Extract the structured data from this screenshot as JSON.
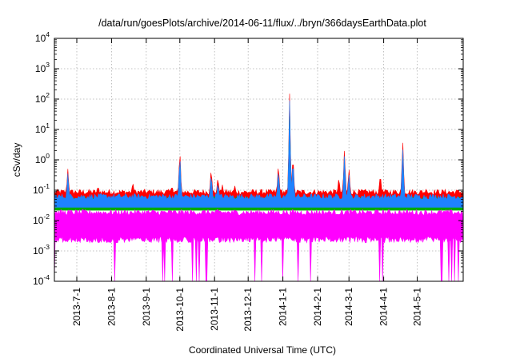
{
  "chart_data": {
    "type": "line",
    "title": "/data/run/goesPlots/archive/2014-06-11/flux/../bryn/366daysEarthData.plot",
    "xlabel": "Coordinated Universal Time (UTC)",
    "ylabel": "cSv/day",
    "yscale": "log",
    "ylim": [
      0.0001,
      10000
    ],
    "xlim": [
      "2013-06-11",
      "2014-06-11"
    ],
    "grid": true,
    "y_ticks": [
      {
        "base": "10",
        "exp": "-4",
        "value": 0.0001
      },
      {
        "base": "10",
        "exp": "-3",
        "value": 0.001
      },
      {
        "base": "10",
        "exp": "-2",
        "value": 0.01
      },
      {
        "base": "10",
        "exp": "-1",
        "value": 0.1
      },
      {
        "base": "10",
        "exp": "0",
        "value": 1
      },
      {
        "base": "10",
        "exp": "1",
        "value": 10
      },
      {
        "base": "10",
        "exp": "2",
        "value": 100
      },
      {
        "base": "10",
        "exp": "3",
        "value": 1000
      },
      {
        "base": "10",
        "exp": "4",
        "value": 10000
      }
    ],
    "x_ticks": [
      {
        "label": "2013-7-1",
        "date": "2013-07-01"
      },
      {
        "label": "2013-8-1",
        "date": "2013-08-01"
      },
      {
        "label": "2013-9-1",
        "date": "2013-09-01"
      },
      {
        "label": "2013-10-1",
        "date": "2013-10-01"
      },
      {
        "label": "2013-11-1",
        "date": "2013-11-01"
      },
      {
        "label": "2013-12-1",
        "date": "2013-12-01"
      },
      {
        "label": "2014-1-1",
        "date": "2014-01-01"
      },
      {
        "label": "2014-2-1",
        "date": "2014-02-01"
      },
      {
        "label": "2014-3-1",
        "date": "2014-03-01"
      },
      {
        "label": "2014-4-1",
        "date": "2014-04-01"
      },
      {
        "label": "2014-5-1",
        "date": "2014-05-01"
      }
    ],
    "series": [
      {
        "color": "#ff0000",
        "baseline": 0.07,
        "events": [
          {
            "date": "2013-06-23",
            "value": 0.5
          },
          {
            "date": "2013-07-20",
            "value": 0.15
          },
          {
            "date": "2013-08-20",
            "value": 0.2
          },
          {
            "date": "2013-09-24",
            "value": 0.15
          },
          {
            "date": "2013-10-01",
            "value": 3
          },
          {
            "date": "2013-10-29",
            "value": 0.6
          },
          {
            "date": "2013-11-04",
            "value": 0.3
          },
          {
            "date": "2013-11-08",
            "value": 0.15
          },
          {
            "date": "2013-11-19",
            "value": 0.15
          },
          {
            "date": "2013-12-28",
            "value": 0.9
          },
          {
            "date": "2014-01-07",
            "value": 150
          },
          {
            "date": "2014-01-10",
            "value": 2
          },
          {
            "date": "2014-02-20",
            "value": 0.3
          },
          {
            "date": "2014-02-25",
            "value": 3
          },
          {
            "date": "2014-03-01",
            "value": 0.6
          },
          {
            "date": "2014-03-29",
            "value": 0.4
          },
          {
            "date": "2014-04-18",
            "value": 6
          },
          {
            "date": "2014-05-09",
            "value": 0.12
          }
        ]
      },
      {
        "color": "#00aa00",
        "baseline": 0.04,
        "events": [
          {
            "date": "2013-06-23",
            "value": 0.25
          },
          {
            "date": "2013-10-01",
            "value": 1.5
          },
          {
            "date": "2013-10-29",
            "value": 0.3
          },
          {
            "date": "2013-11-04",
            "value": 0.15
          },
          {
            "date": "2013-12-28",
            "value": 0.5
          },
          {
            "date": "2014-01-07",
            "value": 60
          },
          {
            "date": "2014-02-25",
            "value": 1.5
          },
          {
            "date": "2014-04-18",
            "value": 2.5
          }
        ]
      },
      {
        "color": "#1e82ff",
        "baseline": 0.05,
        "events": [
          {
            "date": "2013-06-23",
            "value": 0.35
          },
          {
            "date": "2013-10-01",
            "value": 2
          },
          {
            "date": "2013-10-29",
            "value": 0.4
          },
          {
            "date": "2013-11-04",
            "value": 0.2
          },
          {
            "date": "2013-12-28",
            "value": 0.6
          },
          {
            "date": "2014-01-07",
            "value": 90
          },
          {
            "date": "2014-01-10",
            "value": 1.5
          },
          {
            "date": "2014-02-25",
            "value": 2
          },
          {
            "date": "2014-03-01",
            "value": 0.4
          },
          {
            "date": "2014-04-18",
            "value": 3.5
          }
        ]
      },
      {
        "color": "#ff00ff",
        "baseline": 0.015,
        "floor": 0.0001,
        "events": []
      }
    ]
  }
}
